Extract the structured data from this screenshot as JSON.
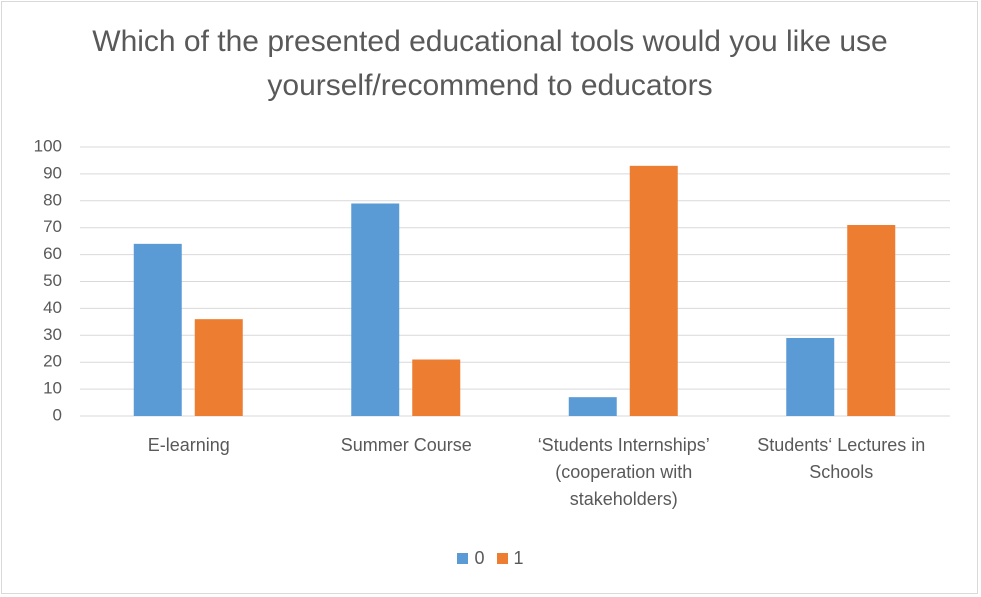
{
  "chart_data": {
    "type": "bar",
    "title": "Which of the presented educational tools would you like use yourself/recommend to educators",
    "categories": [
      "E-learning",
      "Summer Course",
      "‘Students Internships’ (cooperation with stakeholders)",
      "Students‘ Lectures in Schools"
    ],
    "series": [
      {
        "name": "0",
        "color": "#5b9bd5",
        "values": [
          64,
          79,
          7,
          29
        ]
      },
      {
        "name": "1",
        "color": "#ed7d31",
        "values": [
          36,
          21,
          93,
          71
        ]
      }
    ],
    "ylim": [
      0,
      100
    ],
    "yticks": [
      0,
      10,
      20,
      30,
      40,
      50,
      60,
      70,
      80,
      90,
      100
    ],
    "grid": true,
    "legend": "bottom"
  }
}
